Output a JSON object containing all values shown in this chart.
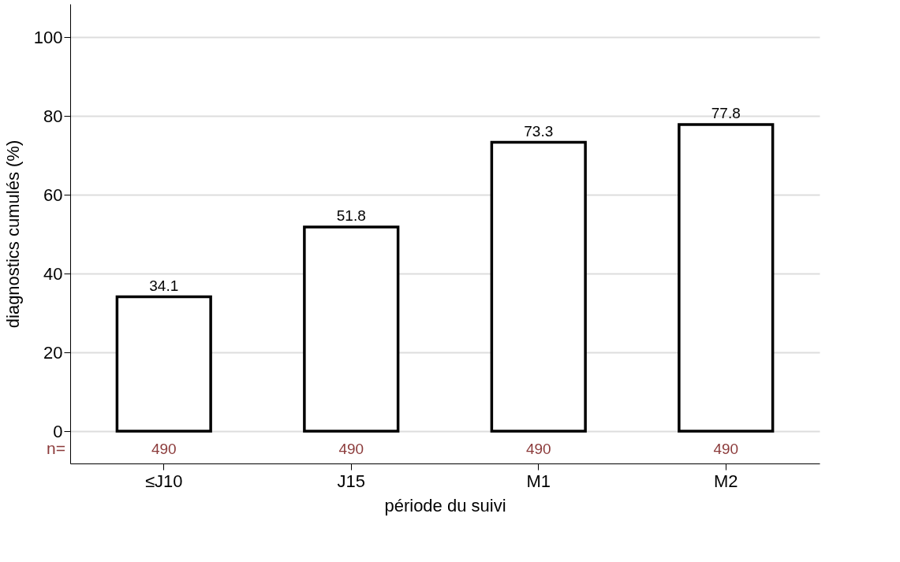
{
  "chart_data": {
    "type": "bar",
    "xlabel": "période du suivi",
    "ylabel": "diagnostics cumulés (%)",
    "categories": [
      "≤J10",
      "J15",
      "M1",
      "M2"
    ],
    "values": [
      34.1,
      51.8,
      73.3,
      77.8
    ],
    "color": "#ffffff",
    "ylim": [
      -8.2,
      108.4
    ],
    "yticks": [
      0,
      20,
      40,
      60,
      80,
      100
    ],
    "grid": "y",
    "data_labels": true,
    "annotations": [
      "n=",
      "490",
      "490",
      "490",
      "490"
    ]
  }
}
